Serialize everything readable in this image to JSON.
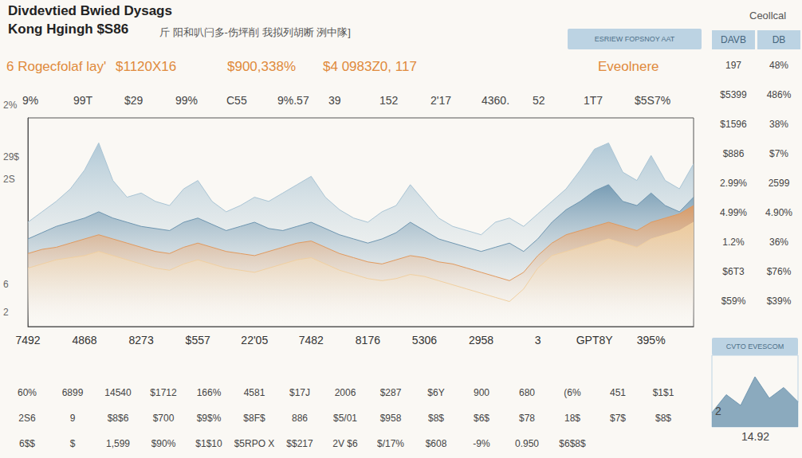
{
  "header": {
    "title": "Divdevtied Bwied Dysags",
    "subtitle": "Kong Hgingh $S86",
    "note": "斤 阳和叭闩多-伤坪削 我拟列胡断 洌中隊]",
    "corner": "Ceollcal",
    "button": "ESRIEW FOPSNOY AAT",
    "highlights": [
      "6 Rogecfolaf lay'",
      "$1120X16",
      "$900,338%",
      "$4 0983Z0, 117",
      "Eveolnere"
    ],
    "top_numbers": [
      "9%",
      "99T",
      "$29",
      "99%",
      "C55",
      "9%.57",
      "39",
      "152",
      "2'17",
      "4360.",
      "52",
      "1T7",
      "$5S7%"
    ],
    "left_labels": [
      "2%",
      "29$",
      "2S",
      "6",
      "2"
    ]
  },
  "chart_data": {
    "type": "area",
    "categories": [
      "7492",
      null,
      null,
      null,
      "4868",
      null,
      null,
      null,
      "8273",
      null,
      null,
      null,
      "$557",
      null,
      null,
      null,
      "22'05",
      null,
      null,
      null,
      "7482",
      null,
      null,
      null,
      "8176",
      null,
      null,
      null,
      "5306",
      null,
      null,
      null,
      "2958",
      null,
      null,
      null,
      "3",
      null,
      null,
      null,
      "GPT8Y",
      null,
      null,
      null,
      "395%",
      null,
      null,
      null
    ],
    "series": [
      {
        "color": "#a9c4d4",
        "values": [
          50,
          55,
          60,
          66,
          75,
          88,
          70,
          62,
          64,
          60,
          58,
          66,
          70,
          60,
          55,
          58,
          62,
          60,
          64,
          68,
          72,
          62,
          56,
          52,
          50,
          55,
          58,
          68,
          60,
          52,
          48,
          46,
          44,
          50,
          52,
          48,
          54,
          60,
          66,
          75,
          85,
          88,
          74,
          70,
          82,
          70,
          66,
          78
        ]
      },
      {
        "color": "#6f96b0",
        "values": [
          42,
          45,
          48,
          50,
          52,
          55,
          52,
          50,
          48,
          47,
          46,
          50,
          52,
          49,
          46,
          48,
          50,
          47,
          46,
          48,
          50,
          47,
          44,
          42,
          40,
          42,
          45,
          50,
          46,
          42,
          40,
          38,
          36,
          38,
          40,
          36,
          42,
          50,
          56,
          60,
          65,
          68,
          60,
          58,
          64,
          58,
          55,
          62
        ]
      },
      {
        "color": "#e0995e",
        "values": [
          35,
          37,
          38,
          40,
          42,
          44,
          42,
          40,
          38,
          36,
          35,
          38,
          40,
          38,
          36,
          35,
          34,
          36,
          38,
          40,
          41,
          38,
          35,
          33,
          31,
          30,
          32,
          34,
          33,
          31,
          30,
          28,
          26,
          24,
          22,
          26,
          34,
          40,
          44,
          46,
          48,
          50,
          48,
          46,
          50,
          52,
          54,
          58
        ]
      },
      {
        "color": "#f0cfa0",
        "values": [
          28,
          30,
          32,
          33,
          34,
          36,
          34,
          32,
          30,
          28,
          27,
          30,
          32,
          30,
          28,
          27,
          26,
          28,
          30,
          32,
          33,
          30,
          27,
          25,
          23,
          22,
          23,
          25,
          24,
          22,
          20,
          18,
          16,
          14,
          12,
          18,
          28,
          34,
          36,
          38,
          40,
          42,
          40,
          38,
          42,
          44,
          46,
          50
        ]
      }
    ],
    "ylim": [
      0,
      100
    ],
    "grid": false,
    "tick_labels": "x"
  },
  "side_table": {
    "header": [
      "DAVB",
      "DB"
    ],
    "rows": [
      [
        "197",
        "48%"
      ],
      [
        "$5399",
        "486%"
      ],
      [
        "$1596",
        "38%"
      ],
      [
        "$886",
        "$7%"
      ],
      [
        "2.99%",
        "2599"
      ],
      [
        "4.99%",
        "4.90%"
      ],
      [
        "1.2%",
        "36%"
      ],
      [
        "$6T3",
        "$76%"
      ],
      [
        "$59%",
        "$39%"
      ]
    ]
  },
  "bottom_table": {
    "rows": [
      [
        "60%",
        "6899",
        "14540",
        "$1712",
        "166%",
        "4581",
        "$17J",
        "2006",
        "$287",
        "$6Y",
        "900",
        "680",
        "(6%",
        "451",
        "$1$1"
      ],
      [
        "2S6",
        "9",
        "$8$6",
        "$700",
        "$9$%",
        "$8F$",
        "886",
        "$5/01",
        "$958",
        "$8$",
        "$6$",
        "$78",
        "18$",
        "$7$",
        "$8$"
      ],
      [
        "6$$",
        "$",
        "1,599",
        "$90%",
        "$1$10",
        "$5RPO X",
        "$$217",
        "2V $6",
        "$/17%",
        "$608",
        "-9%",
        "0.950",
        "$6$8$"
      ]
    ]
  },
  "inset": {
    "title": "CVTO EVESCOM",
    "labels": [
      "2",
      "14.92"
    ],
    "values": [
      20,
      45,
      30,
      70,
      40,
      55,
      35
    ],
    "ylim": [
      0,
      100
    ],
    "color": "#6f96b0"
  }
}
